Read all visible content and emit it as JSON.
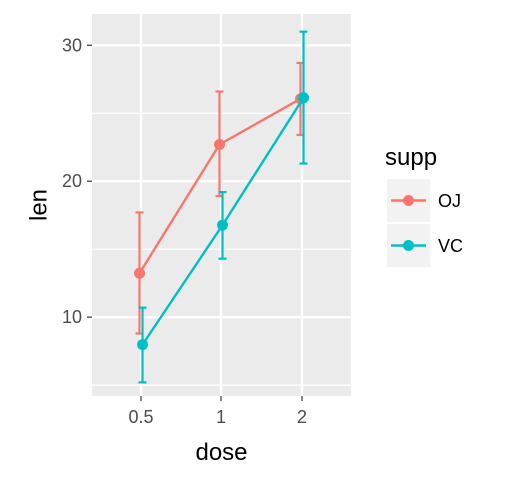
{
  "chart_data": {
    "type": "line",
    "title": "",
    "xlabel": "dose",
    "ylabel": "len",
    "categories": [
      "0.5",
      "1",
      "2"
    ],
    "ylim": [
      4.2,
      32.3
    ],
    "yticks": [
      10,
      20,
      30
    ],
    "grid": true,
    "legend": {
      "title": "supp",
      "placement": "right"
    },
    "series": [
      {
        "name": "OJ",
        "color": "#F8766D",
        "values": [
          13.23,
          22.7,
          26.06
        ],
        "error_low": [
          8.8,
          18.9,
          23.4
        ],
        "error_high": [
          17.7,
          26.6,
          28.7
        ]
      },
      {
        "name": "VC",
        "color": "#00BFC4",
        "values": [
          7.98,
          16.77,
          26.14
        ],
        "error_low": [
          5.2,
          14.3,
          21.3
        ],
        "error_high": [
          10.7,
          19.2,
          31.0
        ]
      }
    ]
  }
}
